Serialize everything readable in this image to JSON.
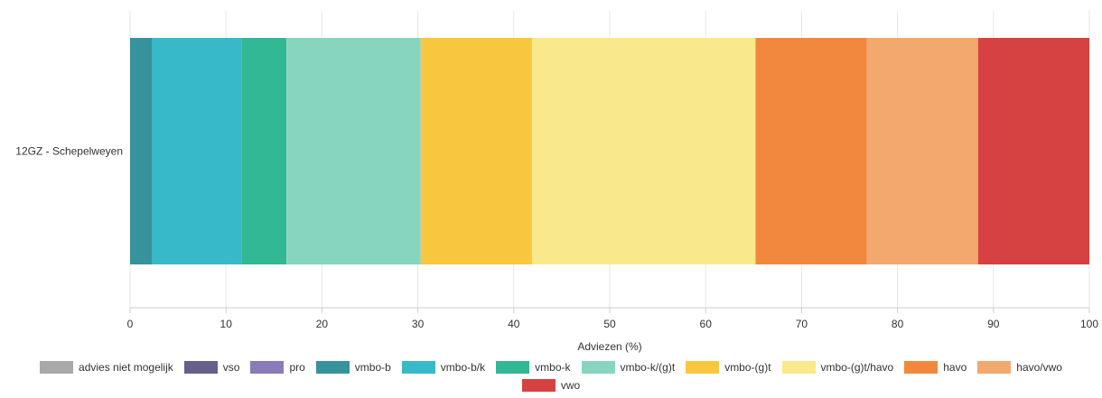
{
  "chart_data": {
    "type": "bar",
    "orientation": "horizontal",
    "stacked": true,
    "categories": [
      "12GZ - Schepelweyen"
    ],
    "series": [
      {
        "name": "advies niet mogelijk",
        "color": "#a9a9a9",
        "values": [
          0
        ]
      },
      {
        "name": "vso",
        "color": "#65608c",
        "values": [
          0
        ]
      },
      {
        "name": "pro",
        "color": "#8a7bb8",
        "values": [
          0
        ]
      },
      {
        "name": "vmbo-b",
        "color": "#36939b",
        "values": [
          2.3
        ]
      },
      {
        "name": "vmbo-b/k",
        "color": "#38b9ca",
        "values": [
          9.3
        ]
      },
      {
        "name": "vmbo-k",
        "color": "#32b894",
        "values": [
          4.7
        ]
      },
      {
        "name": "vmbo-k/(g)t",
        "color": "#88d5bf",
        "values": [
          14.0
        ]
      },
      {
        "name": "vmbo-(g)t",
        "color": "#f9c640",
        "values": [
          11.6
        ]
      },
      {
        "name": "vmbo-(g)t/havo",
        "color": "#fae98b",
        "values": [
          23.3
        ]
      },
      {
        "name": "havo",
        "color": "#f2883d",
        "values": [
          11.6
        ]
      },
      {
        "name": "havo/vwo",
        "color": "#f3a86e",
        "values": [
          11.6
        ]
      },
      {
        "name": "vwo",
        "color": "#d64242",
        "values": [
          11.6
        ]
      }
    ],
    "xlabel": "Adviezen (%)",
    "xlim": [
      0,
      100
    ],
    "xticks": [
      "0",
      "10",
      "20",
      "30",
      "40",
      "50",
      "60",
      "70",
      "80",
      "90",
      "100"
    ],
    "grid": true,
    "legend_position": "bottom"
  }
}
